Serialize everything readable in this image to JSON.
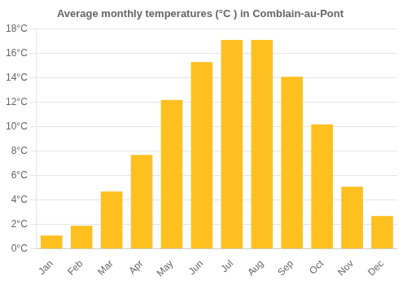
{
  "chart_data": {
    "type": "bar",
    "title": "Average monthly temperatures (°C ) in Comblain-au-Pont",
    "categories": [
      "Jan",
      "Feb",
      "Mar",
      "Apr",
      "May",
      "Jun",
      "Jul",
      "Aug",
      "Sep",
      "Oct",
      "Nov",
      "Dec"
    ],
    "values": [
      1.1,
      1.9,
      4.7,
      7.7,
      12.2,
      15.3,
      17.1,
      17.1,
      14.1,
      10.2,
      5.1,
      2.7
    ],
    "color": "#FFC020",
    "ylim": [
      0,
      18
    ],
    "yticks": [
      {
        "value": 0,
        "label": "0°C"
      },
      {
        "value": 2,
        "label": "2°C"
      },
      {
        "value": 4,
        "label": "4°C"
      },
      {
        "value": 6,
        "label": "6°C"
      },
      {
        "value": 8,
        "label": "8°C"
      },
      {
        "value": 10,
        "label": "10°C"
      },
      {
        "value": 12,
        "label": "12°C"
      },
      {
        "value": 14,
        "label": "14°C"
      },
      {
        "value": 16,
        "label": "16°C"
      },
      {
        "value": 18,
        "label": "18°C"
      }
    ],
    "grid": true
  }
}
